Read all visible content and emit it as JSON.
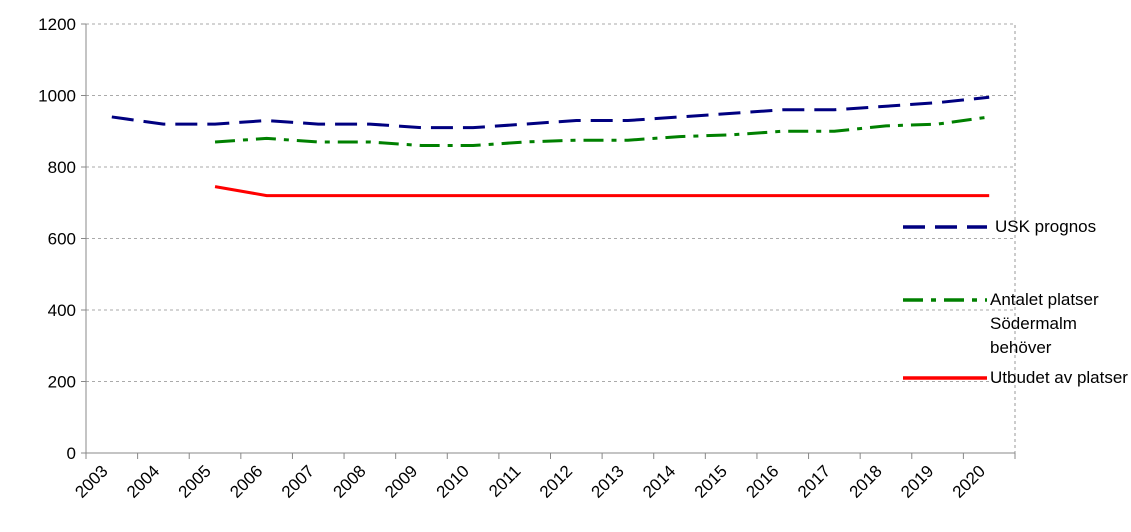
{
  "chart_data": {
    "type": "line",
    "categories": [
      "2003",
      "2004",
      "2005",
      "2006",
      "2007",
      "2008",
      "2009",
      "2010",
      "2011",
      "2012",
      "2013",
      "2014",
      "2015",
      "2016",
      "2017",
      "2018",
      "2019",
      "2020"
    ],
    "series": [
      {
        "name": "USK prognos",
        "color": "#000080",
        "dash": "dashed",
        "values": [
          940,
          920,
          920,
          930,
          920,
          920,
          910,
          910,
          920,
          930,
          930,
          940,
          950,
          960,
          960,
          970,
          980,
          995
        ]
      },
      {
        "name": "Antalet platser Södermalm behöver",
        "color": "#008000",
        "dash": "dashdot",
        "values": [
          null,
          null,
          870,
          880,
          870,
          870,
          860,
          860,
          870,
          875,
          875,
          885,
          890,
          900,
          900,
          915,
          920,
          940
        ]
      },
      {
        "name": "Utbudet av platser",
        "color": "#ff0000",
        "dash": "solid",
        "values": [
          null,
          null,
          745,
          720,
          720,
          720,
          720,
          720,
          720,
          720,
          720,
          720,
          720,
          720,
          720,
          720,
          720,
          720
        ]
      }
    ],
    "ylim": [
      0,
      1200
    ],
    "yticks": [
      0,
      200,
      400,
      600,
      800,
      1000,
      1200
    ],
    "grid": true,
    "legend": "right"
  }
}
